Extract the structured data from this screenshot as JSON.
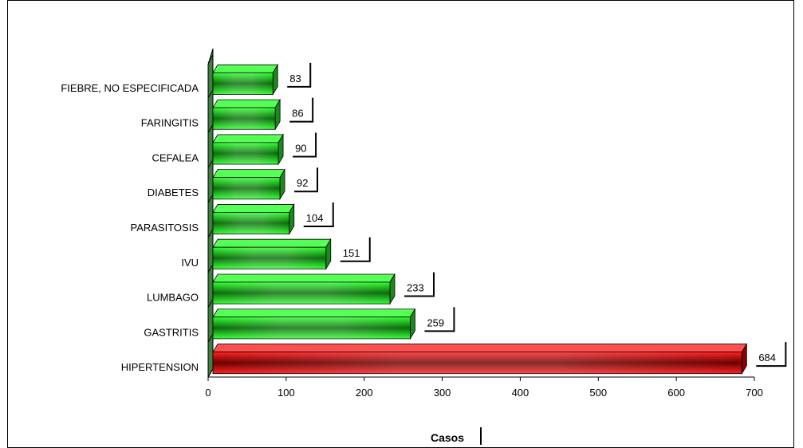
{
  "chart_data": {
    "type": "bar",
    "orientation": "horizontal",
    "categories": [
      "HIPERTENSION",
      "GASTRITIS",
      "LUMBAGO",
      "IVU",
      "PARASITOSIS",
      "DIABETES",
      "CEFALEA",
      "FARINGITIS",
      "FIEBRE, NO ESPECIFICADA"
    ],
    "values": [
      684,
      259,
      233,
      151,
      104,
      92,
      90,
      86,
      83
    ],
    "xlabel": "Casos",
    "ylabel": "",
    "xlim": [
      0,
      700
    ],
    "x_ticks": [
      0,
      100,
      200,
      300,
      400,
      500,
      600,
      700
    ],
    "grid": false,
    "legend": "none",
    "colors": {
      "highlight": "#e00000",
      "default": "#22dd22",
      "wall": "#3f7f3f"
    }
  }
}
